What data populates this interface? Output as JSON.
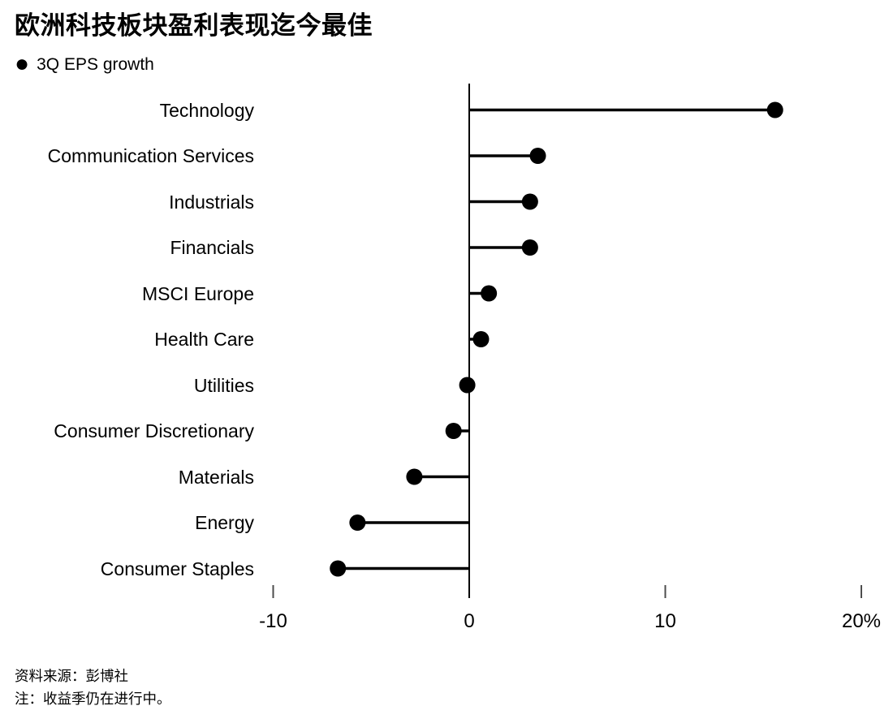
{
  "title": "欧洲科技板块盈利表现迄今最佳",
  "legend": {
    "marker": "●",
    "series_label": "3Q EPS growth"
  },
  "chart_data": {
    "type": "bar",
    "subtype": "horizontal-lollipop",
    "title": "欧洲科技板块盈利表现迄今最佳",
    "series_name": "3Q EPS growth",
    "unit": "%",
    "categories": [
      "Technology",
      "Communication Services",
      "Industrials",
      "Financials",
      "MSCI Europe",
      "Health Care",
      "Utilities",
      "Consumer Discretionary",
      "Materials",
      "Energy",
      "Consumer Staples"
    ],
    "values": [
      15.6,
      3.5,
      3.1,
      3.1,
      1.0,
      0.6,
      -0.1,
      -0.8,
      -2.8,
      -5.7,
      -6.7
    ],
    "x_ticks": [
      {
        "value": -10,
        "label": "-10"
      },
      {
        "value": 0,
        "label": "0"
      },
      {
        "value": 10,
        "label": "10"
      },
      {
        "value": 20,
        "label": "20%"
      }
    ],
    "xlim": [
      -12,
      21.5
    ],
    "grid": false,
    "legend_position": "top-left",
    "dot_color": "#000000",
    "stem_color": "#000000",
    "axis_color": "#000000",
    "tick_color": "#4d4d4d"
  },
  "footer": {
    "source": "资料来源：彭博社",
    "note": "注：收益季仍在进行中。"
  }
}
